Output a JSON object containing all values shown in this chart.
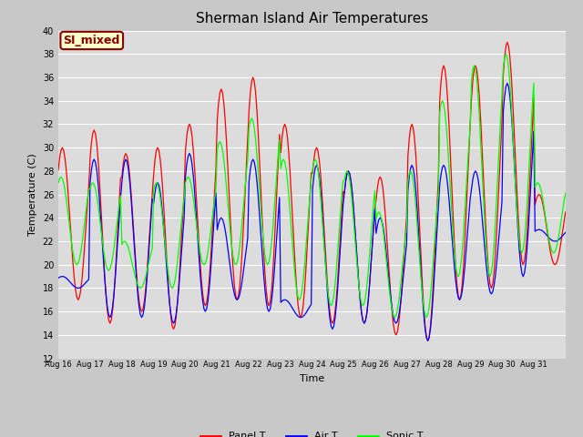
{
  "title": "Sherman Island Air Temperatures",
  "xlabel": "Time",
  "ylabel": "Temperature (C)",
  "ylim": [
    12,
    40
  ],
  "yticks": [
    12,
    14,
    16,
    18,
    20,
    22,
    24,
    26,
    28,
    30,
    32,
    34,
    36,
    38,
    40
  ],
  "date_labels": [
    "Aug 16",
    "Aug 17",
    "Aug 18",
    "Aug 19",
    "Aug 20",
    "Aug 21",
    "Aug 22",
    "Aug 23",
    "Aug 24",
    "Aug 25",
    "Aug 26",
    "Aug 27",
    "Aug 28",
    "Aug 29",
    "Aug 30",
    "Aug 31"
  ],
  "legend_labels": [
    "Panel T",
    "Air T",
    "Sonic T"
  ],
  "line_colors": [
    "red",
    "blue",
    "lime"
  ],
  "annotation_text": "SI_mixed",
  "annotation_bg": "#ffffcc",
  "annotation_fg": "#8b0000",
  "fig_bg": "#c8c8c8",
  "plot_bg": "#dcdcdc",
  "grid_color": "white",
  "panel_peaks": [
    30,
    31.5,
    29.5,
    30,
    32,
    35,
    36,
    32,
    30,
    28,
    27.5,
    32,
    37,
    37,
    39,
    26
  ],
  "panel_troughs": [
    17,
    15,
    16,
    14.5,
    16.5,
    17,
    16.5,
    15.5,
    15,
    15,
    14,
    13.5,
    17,
    18,
    20,
    20
  ],
  "air_peaks": [
    19,
    29,
    29,
    27,
    29.5,
    24,
    29,
    17,
    28.5,
    28,
    24,
    28.5,
    28.5,
    28,
    35.5,
    23
  ],
  "air_troughs": [
    18,
    15.5,
    15.5,
    15,
    16,
    17,
    16,
    15.5,
    14.5,
    15,
    15,
    13.5,
    17,
    17.5,
    19,
    22
  ],
  "sonic_peaks": [
    27.5,
    27,
    22,
    27,
    27.5,
    30.5,
    32.5,
    29,
    29,
    28,
    24.5,
    28,
    34,
    37,
    38,
    27
  ],
  "sonic_troughs": [
    20,
    19.5,
    18,
    18,
    20,
    20,
    20,
    17,
    16.5,
    16.5,
    15.5,
    15.5,
    19,
    19,
    21,
    21
  ],
  "n_days": 16,
  "pts_per_day": 24
}
